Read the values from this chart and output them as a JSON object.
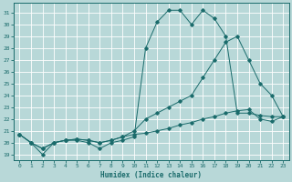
{
  "xlabel": "Humidex (Indice chaleur)",
  "bg_color": "#b8d8d8",
  "grid_color": "#ffffff",
  "line_color": "#1a6b6b",
  "xlim": [
    -0.5,
    23.5
  ],
  "ylim": [
    18.5,
    31.8
  ],
  "xticks": [
    0,
    1,
    2,
    3,
    4,
    5,
    6,
    7,
    8,
    9,
    10,
    11,
    12,
    13,
    14,
    15,
    16,
    17,
    18,
    19,
    20,
    21,
    22,
    23
  ],
  "yticks": [
    19,
    20,
    21,
    22,
    23,
    24,
    25,
    26,
    27,
    28,
    29,
    30,
    31
  ],
  "line1_x": [
    0,
    1,
    2,
    3,
    4,
    5,
    6,
    7,
    8,
    9,
    10,
    11,
    12,
    13,
    14,
    15,
    16,
    17,
    18,
    19,
    20,
    21,
    22,
    23
  ],
  "line1_y": [
    20.7,
    20.0,
    19.0,
    20.0,
    20.2,
    20.2,
    20.0,
    19.5,
    20.0,
    20.2,
    20.5,
    28.0,
    30.2,
    31.2,
    31.2,
    30.0,
    31.2,
    30.5,
    29.0,
    22.5,
    22.5,
    22.3,
    22.2,
    22.2
  ],
  "line2_x": [
    0,
    1,
    2,
    3,
    4,
    5,
    6,
    7,
    8,
    9,
    10,
    11,
    12,
    13,
    14,
    15,
    16,
    17,
    18,
    19,
    20,
    21,
    22,
    23
  ],
  "line2_y": [
    20.7,
    20.0,
    19.5,
    20.0,
    20.2,
    20.3,
    20.2,
    20.0,
    20.2,
    20.5,
    21.0,
    22.0,
    22.5,
    23.0,
    23.5,
    24.0,
    25.5,
    27.0,
    28.5,
    29.0,
    27.0,
    25.0,
    24.0,
    22.2
  ],
  "line3_x": [
    0,
    1,
    2,
    3,
    4,
    5,
    6,
    7,
    8,
    9,
    10,
    11,
    12,
    13,
    14,
    15,
    16,
    17,
    18,
    19,
    20,
    21,
    22,
    23
  ],
  "line3_y": [
    20.7,
    20.0,
    19.5,
    20.0,
    20.2,
    20.3,
    20.2,
    20.0,
    20.2,
    20.5,
    20.7,
    20.8,
    21.0,
    21.2,
    21.5,
    21.7,
    22.0,
    22.2,
    22.5,
    22.7,
    22.8,
    22.0,
    21.8,
    22.2
  ]
}
